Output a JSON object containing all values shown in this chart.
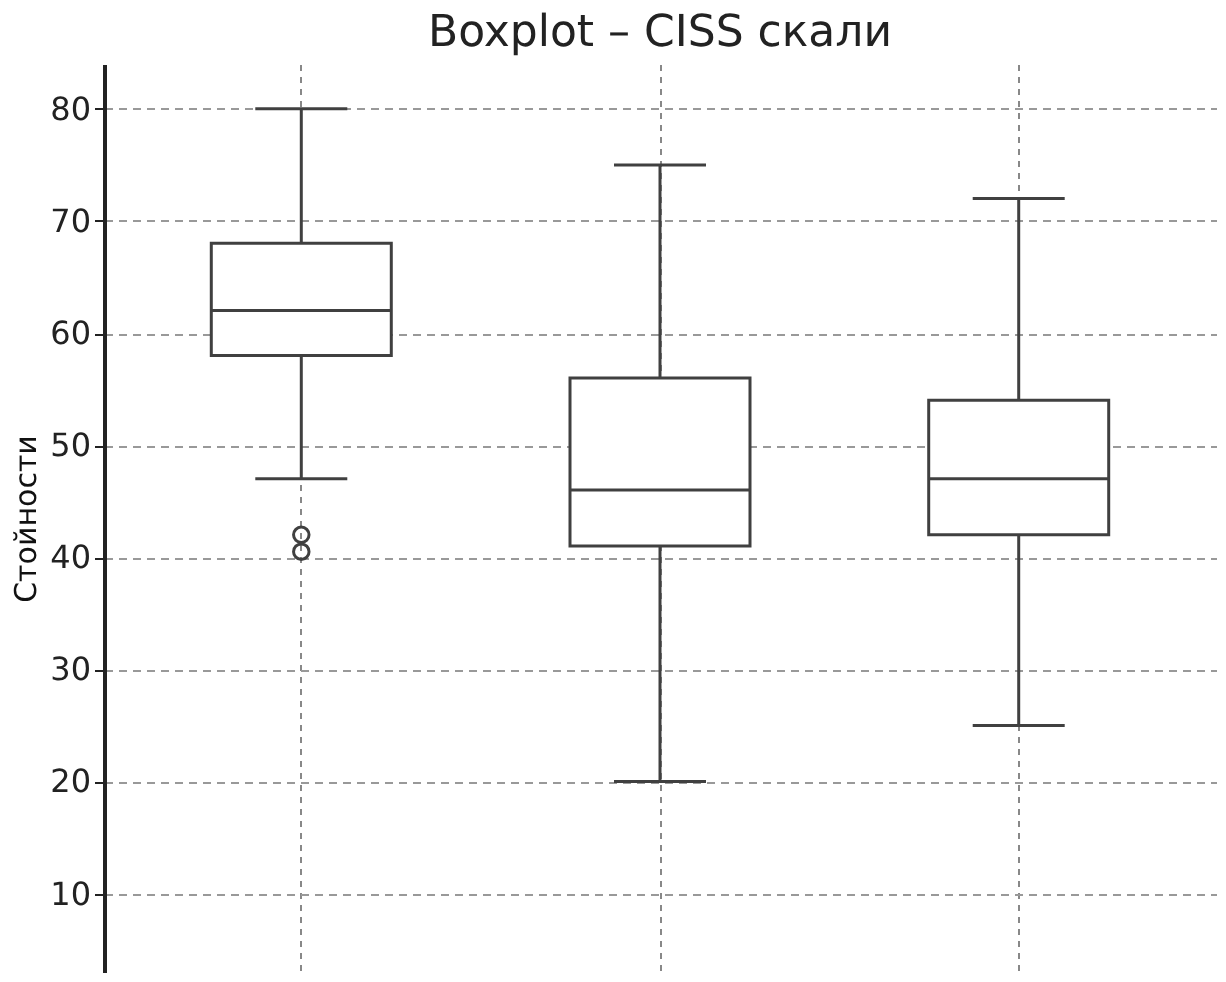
{
  "chart_data": {
    "type": "box",
    "title": "Boxplot – CISS скали",
    "ylabel": "Стойности",
    "categories": [
      null,
      null,
      null
    ],
    "boxes": [
      {
        "low": 47,
        "q1": 58,
        "median": 62,
        "q3": 68,
        "high": 80,
        "outliers": [
          42,
          40.5
        ]
      },
      {
        "low": 20,
        "q1": 41,
        "median": 46,
        "q3": 56,
        "high": 75
      },
      {
        "low": 25,
        "q1": 42,
        "median": 47,
        "q3": 54,
        "high": 72
      }
    ],
    "color": "#404040",
    "ylim": [
      3,
      84
    ],
    "yticks": [
      10,
      20,
      30,
      40,
      50,
      60,
      70,
      80
    ],
    "grid": true,
    "tick_labels": "y"
  }
}
